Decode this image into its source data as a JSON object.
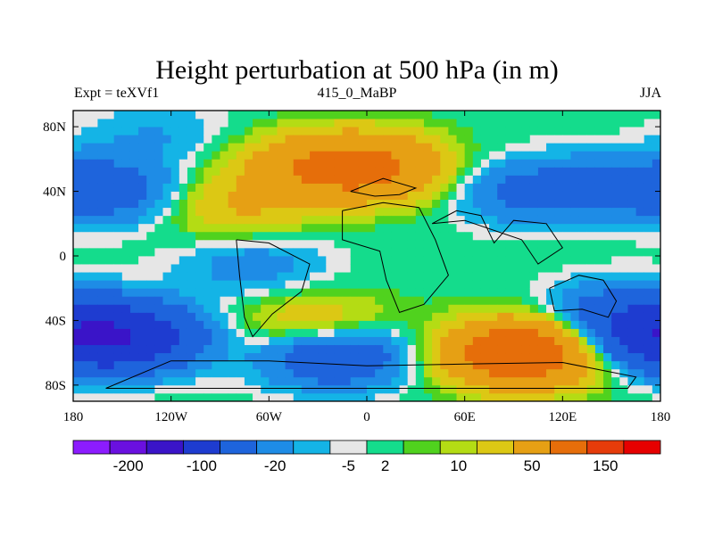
{
  "chart_data": {
    "type": "heatmap",
    "title": "Height perturbation at 500 hPa (in m)",
    "subtitle_left": "Expt = teXVf1",
    "subtitle_center": "415_0_MaBP",
    "subtitle_right": "JJA",
    "x_range": [
      -180,
      180
    ],
    "y_range": [
      -90,
      90
    ],
    "x_ticks": [
      {
        "value": -180,
        "label": "180"
      },
      {
        "value": -120,
        "label": "120W"
      },
      {
        "value": -60,
        "label": "60W"
      },
      {
        "value": 0,
        "label": "0"
      },
      {
        "value": 60,
        "label": "60E"
      },
      {
        "value": 120,
        "label": "120E"
      },
      {
        "value": 180,
        "label": "180"
      }
    ],
    "y_ticks": [
      {
        "value": 80,
        "label": "80N"
      },
      {
        "value": 40,
        "label": "40N"
      },
      {
        "value": 0,
        "label": "0"
      },
      {
        "value": -40,
        "label": "40S"
      },
      {
        "value": -80,
        "label": "80S"
      }
    ],
    "colorbar": {
      "colors": [
        "#8c1cff",
        "#6a10e0",
        "#3a14c8",
        "#1e3cd0",
        "#1e64dc",
        "#1e8ce6",
        "#14b4e6",
        "#e6e6e6",
        "#14dc8c",
        "#50d21e",
        "#b4dc14",
        "#dcc814",
        "#e6a014",
        "#e66e0a",
        "#e63c0a",
        "#e60000"
      ],
      "labels": [
        "-200",
        "-100",
        "-20",
        "-5",
        "2",
        "10",
        "50",
        "150"
      ],
      "label_boundary_indices": [
        1,
        3,
        5,
        7,
        8,
        10,
        12,
        14
      ]
    },
    "anomaly_centers": [
      {
        "lon": -150,
        "lat": -50,
        "value": -80
      },
      {
        "lon": -160,
        "lat": 40,
        "value": -30
      },
      {
        "lon": -40,
        "lat": 55,
        "value": 25
      },
      {
        "lon": 0,
        "lat": 55,
        "value": 60
      },
      {
        "lon": -80,
        "lat": 30,
        "value": 20
      },
      {
        "lon": 100,
        "lat": 40,
        "value": -25
      },
      {
        "lon": 155,
        "lat": 45,
        "value": -15
      },
      {
        "lon": -70,
        "lat": -5,
        "value": -15
      },
      {
        "lon": -30,
        "lat": -45,
        "value": 30
      },
      {
        "lon": -20,
        "lat": -60,
        "value": -50
      },
      {
        "lon": 95,
        "lat": -60,
        "value": 90
      },
      {
        "lon": 155,
        "lat": -35,
        "value": -25
      },
      {
        "lon": 175,
        "lat": -50,
        "value": -45
      },
      {
        "lon": -130,
        "lat": 75,
        "value": -10
      }
    ]
  }
}
